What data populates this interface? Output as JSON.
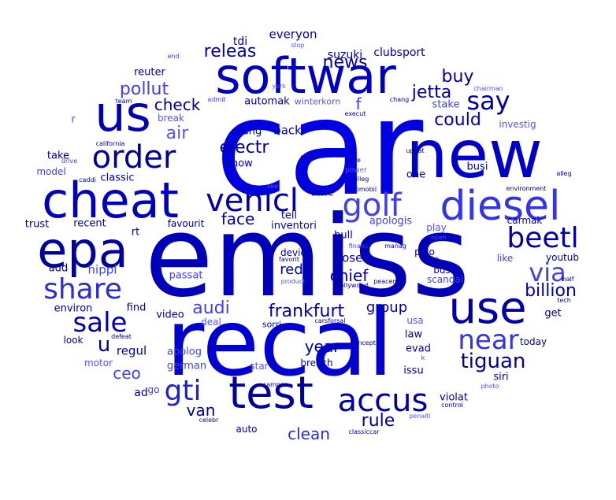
{
  "words": [
    {
      "text": "car",
      "color": "#0000e0"
    },
    {
      "text": "emiss",
      "color": "#0000b8"
    },
    {
      "text": "recal",
      "color": "#0000d0"
    },
    {
      "text": "new",
      "color": "#0000c8"
    },
    {
      "text": "softwar",
      "color": "#0000c0"
    },
    {
      "text": "us",
      "color": "#0000b0"
    },
    {
      "text": "cheat",
      "color": "#0000c0"
    },
    {
      "text": "epa",
      "color": "#0000a0"
    },
    {
      "text": "use",
      "color": "#0000a8"
    },
    {
      "text": "test",
      "color": "#0000a0"
    },
    {
      "text": "diesel",
      "color": "#3333e8"
    },
    {
      "text": "order",
      "color": "#0000a0"
    },
    {
      "text": "vehicl",
      "color": "#0000b0"
    },
    {
      "text": "golf",
      "color": "#4040f0"
    },
    {
      "text": "beetl",
      "color": "#0000b0"
    },
    {
      "text": "share",
      "color": "#2a2ae0"
    },
    {
      "text": "sale",
      "color": "#0000c0"
    },
    {
      "text": "accus",
      "color": "#0000a8"
    },
    {
      "text": "near",
      "color": "#3333e8"
    },
    {
      "text": "say",
      "color": "#0000a0"
    },
    {
      "text": "gti",
      "color": "#2020d8"
    },
    {
      "text": "via",
      "color": "#4040f0"
    },
    {
      "text": "tiguan",
      "color": "#0000a0"
    },
    {
      "text": "news",
      "color": "#0000a8"
    },
    {
      "text": "jetta",
      "color": "#0000a8"
    },
    {
      "text": "buy",
      "color": "#0000a0"
    },
    {
      "text": "could",
      "color": "#0000b0"
    },
    {
      "text": "pollut",
      "color": "#4040f0"
    },
    {
      "text": "check",
      "color": "#0000a0"
    },
    {
      "text": "air",
      "color": "#5555f0"
    },
    {
      "text": "electr",
      "color": "#0000a0"
    },
    {
      "text": "releas",
      "color": "#0000a8"
    },
    {
      "text": "frankfurt",
      "color": "#0000a8"
    },
    {
      "text": "billion",
      "color": "#0000a8"
    },
    {
      "text": "audi",
      "color": "#4040f0"
    },
    {
      "text": "u",
      "color": "#0000a0"
    },
    {
      "text": "year",
      "color": "#0000a8"
    },
    {
      "text": "chief",
      "color": "#0000a0"
    },
    {
      "text": "rule",
      "color": "#0000a0"
    },
    {
      "text": "clean",
      "color": "#2a2ae0"
    },
    {
      "text": "van",
      "color": "#0000a8"
    },
    {
      "text": "ceo",
      "color": "#4040f0"
    },
    {
      "text": "group",
      "color": "#0000a0"
    },
    {
      "text": "face",
      "color": "#0000a0"
    },
    {
      "text": "red",
      "color": "#0000a0"
    },
    {
      "text": "everyon",
      "color": "#0000a0"
    },
    {
      "text": "suzuki",
      "color": "#0000a0"
    },
    {
      "text": "clubsport",
      "color": "#0000a0"
    },
    {
      "text": "f",
      "color": "#4040f0"
    },
    {
      "text": "tdi",
      "color": "#0000a0"
    },
    {
      "text": "automak",
      "color": "#0000a0"
    },
    {
      "text": "winterkorn",
      "color": "#5555f0"
    },
    {
      "text": "stake",
      "color": "#4040f0"
    },
    {
      "text": "investig",
      "color": "#5555f0"
    },
    {
      "text": "break",
      "color": "#5555f0"
    },
    {
      "text": "r",
      "color": "#5555f0"
    },
    {
      "text": "reuter",
      "color": "#0000a0"
    },
    {
      "text": "take",
      "color": "#0000a0"
    },
    {
      "text": "model",
      "color": "#4040f0"
    },
    {
      "text": "classic",
      "color": "#0000a0"
    },
    {
      "text": "plung",
      "color": "#0000a0"
    },
    {
      "text": "show",
      "color": "#0000a0"
    },
    {
      "text": "back",
      "color": "#0000a0"
    },
    {
      "text": "one",
      "color": "#0000a0"
    },
    {
      "text": "busi",
      "color": "#0000a0"
    },
    {
      "text": "time",
      "color": "#0000a0"
    },
    {
      "text": "tell",
      "color": "#0000a0"
    },
    {
      "text": "inventori",
      "color": "#0000a0"
    },
    {
      "text": "apologis",
      "color": "#4040f0"
    },
    {
      "text": "play",
      "color": "#5555f0"
    },
    {
      "text": "carmak",
      "color": "#0000a0"
    },
    {
      "text": "trust",
      "color": "#0000a0"
    },
    {
      "text": "recent",
      "color": "#0000a0"
    },
    {
      "text": "favourit",
      "color": "#0000a0"
    },
    {
      "text": "rt",
      "color": "#0000a0"
    },
    {
      "text": "bull",
      "color": "#0000a0"
    },
    {
      "text": "devic",
      "color": "#0000a0"
    },
    {
      "text": "close",
      "color": "#0000a0"
    },
    {
      "text": "polo",
      "color": "#0000a0"
    },
    {
      "text": "like",
      "color": "#4040f0"
    },
    {
      "text": "youtub",
      "color": "#0000a0"
    },
    {
      "text": "add",
      "color": "#0000a0"
    },
    {
      "text": "hippi",
      "color": "#4040f0"
    },
    {
      "text": "passat",
      "color": "#4040f0"
    },
    {
      "text": "bus",
      "color": "#0000a0"
    },
    {
      "text": "scandal",
      "color": "#4040f0"
    },
    {
      "text": "environ",
      "color": "#0000a0"
    },
    {
      "text": "find",
      "color": "#0000a0"
    },
    {
      "text": "video",
      "color": "#0000a0"
    },
    {
      "text": "deal",
      "color": "#5555f0"
    },
    {
      "text": "sorri",
      "color": "#0000a0"
    },
    {
      "text": "usa",
      "color": "#5555f0"
    },
    {
      "text": "get",
      "color": "#0000a0"
    },
    {
      "text": "look",
      "color": "#0000a0"
    },
    {
      "text": "regul",
      "color": "#0000a0"
    },
    {
      "text": "law",
      "color": "#0000a0"
    },
    {
      "text": "today",
      "color": "#0000a0"
    },
    {
      "text": "apolog",
      "color": "#4040f0"
    },
    {
      "text": "german",
      "color": "#4040f0"
    },
    {
      "text": "evad",
      "color": "#0000a0"
    },
    {
      "text": "motor",
      "color": "#5555f0"
    },
    {
      "text": "star",
      "color": "#5555f0"
    },
    {
      "text": "breach",
      "color": "#0000a0"
    },
    {
      "text": "issu",
      "color": "#0000a0"
    },
    {
      "text": "siri",
      "color": "#0000a0"
    },
    {
      "text": "ad",
      "color": "#0000a0"
    },
    {
      "text": "go",
      "color": "#4040f0"
    },
    {
      "text": "violat",
      "color": "#0000a0"
    },
    {
      "text": "auto",
      "color": "#0000a0"
    },
    {
      "text": "stop",
      "color": "#5555f0"
    },
    {
      "text": "end",
      "color": "#4040f0"
    },
    {
      "text": "york",
      "color": "#5555f0"
    },
    {
      "text": "chairman",
      "color": "#5555f0"
    },
    {
      "text": "team",
      "color": "#0000a0"
    },
    {
      "text": "admit",
      "color": "#4040f0"
    },
    {
      "text": "chang",
      "color": "#0000a0"
    },
    {
      "text": "execut",
      "color": "#0000a0"
    },
    {
      "text": "california",
      "color": "#0000a0"
    },
    {
      "text": "updat",
      "color": "#0000a0"
    },
    {
      "text": "post",
      "color": "#0000a0"
    },
    {
      "text": "price",
      "color": "#0000a0"
    },
    {
      "text": "power",
      "color": "#5555f0"
    },
    {
      "text": "drive",
      "color": "#4040f0"
    },
    {
      "text": "caddi",
      "color": "#0000a0"
    },
    {
      "text": "see",
      "color": "#5555f0"
    },
    {
      "text": "illeg",
      "color": "#0000a0"
    },
    {
      "text": "automobil",
      "color": "#0000a0"
    },
    {
      "text": "alleg",
      "color": "#0000a0"
    },
    {
      "text": "environment",
      "color": "#0000a0"
    },
    {
      "text": "financ",
      "color": "#4040f0"
    },
    {
      "text": "manag",
      "color": "#0000a0"
    },
    {
      "text": "open",
      "color": "#5555f0"
    },
    {
      "text": "make",
      "color": "#0000a0"
    },
    {
      "text": "favorit",
      "color": "#0000a0"
    },
    {
      "text": "product",
      "color": "#5555f0"
    },
    {
      "text": "fin",
      "color": "#0000a0"
    },
    {
      "text": "peacemak",
      "color": "#0000a0"
    },
    {
      "text": "hollywood",
      "color": "#0000a0"
    },
    {
      "text": "half",
      "color": "#0000a0"
    },
    {
      "text": "tech",
      "color": "#0000a0"
    },
    {
      "text": "carsforsal",
      "color": "#0000a0"
    },
    {
      "text": "defeat",
      "color": "#0000a0"
    },
    {
      "text": "concept",
      "color": "#0000a0"
    },
    {
      "text": "k",
      "color": "#4040f0"
    },
    {
      "text": "camper",
      "color": "#0000a0"
    },
    {
      "text": "photo",
      "color": "#5555f0"
    },
    {
      "text": "control",
      "color": "#0000a0"
    },
    {
      "text": "penalti",
      "color": "#5555f0"
    },
    {
      "text": "celebr",
      "color": "#0000a0"
    },
    {
      "text": "classiccar",
      "color": "#0000a0"
    }
  ]
}
